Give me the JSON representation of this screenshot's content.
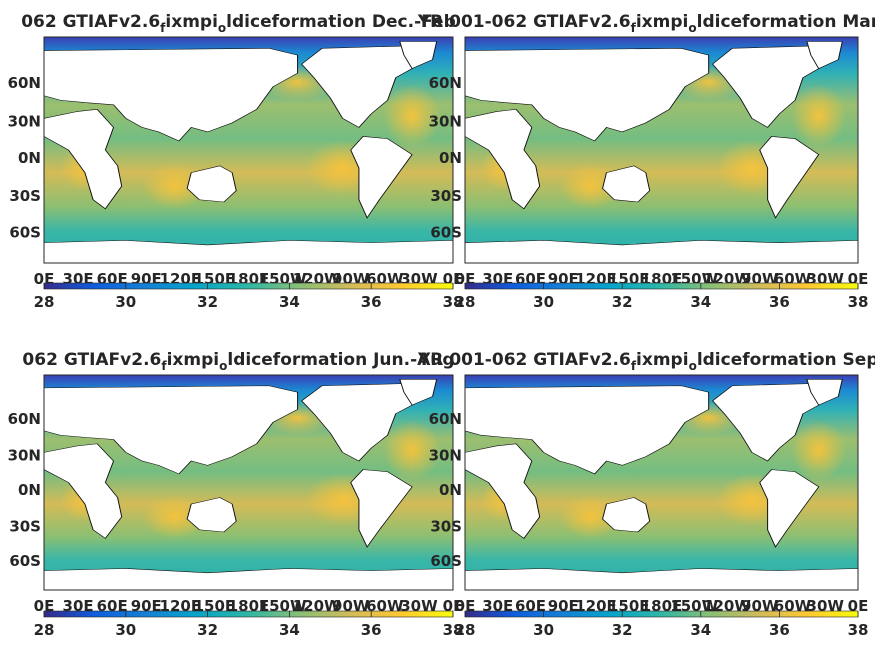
{
  "chart_data": {
    "type": "heatmap",
    "colormap": "parula",
    "colorbar_range": [
      28,
      38
    ],
    "colorbar_ticks": [
      "28",
      "30",
      "32",
      "34",
      "36",
      "38"
    ],
    "lat_ticks": [
      "60N",
      "30N",
      "0N",
      "30S",
      "60S"
    ],
    "lon_ticks": [
      "0E",
      "30E",
      "60E",
      "90E",
      "120E",
      "150E",
      "180E",
      "150W",
      "120W",
      "90W",
      "60W",
      "30W",
      "0E"
    ],
    "panels": [
      {
        "title_left": "062 GTIAFv2.6",
        "title_sub": "f",
        "title_mid": "ixmpi",
        "title_sub2": "o",
        "title_right": "ldiceformation Dec.-Feb"
      },
      {
        "title_left": "YR 001-062 GTIAFv2.6",
        "title_sub": "f",
        "title_mid": "ixmpi",
        "title_sub2": "o",
        "title_right": "ldiceformation Mar.-May"
      },
      {
        "title_left": "062 GTIAFv2.6",
        "title_sub": "f",
        "title_mid": "ixmpi",
        "title_sub2": "o",
        "title_right": "ldiceformation Jun.-Aug"
      },
      {
        "title_left": "YR 001-062 GTIAFv2.6",
        "title_sub": "f",
        "title_mid": "ixmpi",
        "title_sub2": "o",
        "title_right": "ldiceformation Sep.-Nov"
      }
    ]
  }
}
